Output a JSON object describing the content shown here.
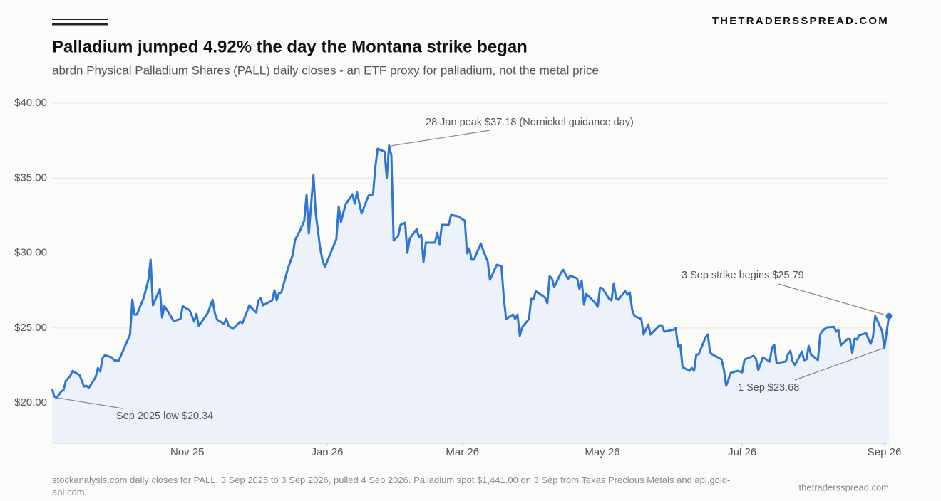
{
  "chart_data": {
    "type": "line",
    "brand": "THETRADERSSPREAD.COM",
    "title": "Palladium jumped 4.92% the day the Montana strike began",
    "subtitle": "abrdn Physical Palladium Shares (PALL) daily closes - an ETF proxy for palladium, not the metal price",
    "source": "stockanalysis.com daily closes for PALL, 3 Sep 2025 to 3 Sep 2026, pulled 4 Sep 2026. Palladium spot $1,441.00 on 3 Sep from Texas Precious Metals and api.gold-api.com.",
    "footer_right": "thetradersspread.com",
    "annotations": [
      "28 Jan peak $37.18 (Nornickel guidance day)",
      "Sep 2025 low $20.34",
      "3 Sep strike begins $25.79",
      "1 Sep $23.68"
    ],
    "x": [
      0,
      1,
      2,
      4,
      5,
      6,
      8,
      9,
      12,
      14,
      15,
      16,
      19,
      20,
      21,
      22,
      23,
      26,
      27,
      29,
      34,
      35,
      36,
      37,
      40,
      42,
      43,
      44,
      47,
      48,
      49,
      51,
      53,
      56,
      57,
      60,
      62,
      63,
      64,
      68,
      70,
      71,
      72,
      75,
      76,
      77,
      79,
      82,
      83,
      85,
      86,
      89,
      90,
      91,
      92,
      96,
      97,
      98,
      99,
      100,
      103,
      105,
      106,
      108,
      110,
      111,
      112,
      114,
      115,
      117,
      118,
      119,
      124,
      125,
      126,
      128,
      130,
      131,
      132,
      133,
      135,
      138,
      140,
      141,
      142,
      145,
      146,
      147,
      148,
      149,
      151,
      152,
      154,
      155,
      156,
      159,
      160,
      161,
      162,
      163,
      167,
      168,
      169,
      170,
      173,
      174,
      177,
      180,
      181,
      182,
      183,
      184,
      187,
      188,
      190,
      191,
      194,
      196,
      197,
      198,
      201,
      202,
      203,
      204,
      205,
      208,
      209,
      210,
      211,
      215,
      216,
      217,
      218,
      219,
      222,
      223,
      225,
      226,
      229,
      230,
      231,
      232,
      233,
      237,
      238,
      239,
      240,
      243,
      244,
      245,
      246,
      247,
      250,
      251,
      252,
      253,
      254,
      257,
      258,
      260,
      261,
      265,
      266,
      267,
      271,
      272,
      273,
      274,
      275,
      278,
      279,
      280,
      281,
      282,
      285,
      286,
      287,
      288,
      292,
      293,
      294,
      296,
      299,
      301,
      302,
      306,
      307,
      308,
      310,
      313,
      314,
      315,
      316,
      320,
      321,
      322,
      323,
      324,
      327,
      328,
      329,
      330,
      331,
      334,
      335,
      336,
      337,
      338,
      341,
      342,
      343,
      344,
      347,
      348,
      349,
      350,
      351,
      352,
      355,
      357,
      358,
      359,
      362,
      363,
      365
    ],
    "series": [
      {
        "name": "PALL daily close",
        "color": "#2f76d2",
        "area_color": "#edf1f9",
        "values": [
          20.95,
          20.43,
          20.34,
          20.76,
          20.86,
          21.47,
          21.81,
          22.14,
          21.85,
          21.09,
          21.14,
          21.0,
          21.71,
          22.33,
          22.09,
          22.99,
          23.18,
          23.04,
          22.85,
          22.8,
          24.56,
          26.89,
          25.89,
          25.89,
          27.03,
          28.22,
          29.55,
          26.51,
          27.6,
          25.7,
          26.46,
          25.99,
          25.46,
          25.6,
          26.46,
          26.18,
          25.42,
          25.94,
          25.13,
          26.03,
          26.89,
          25.99,
          25.56,
          25.27,
          25.6,
          25.13,
          24.94,
          25.42,
          25.32,
          26.08,
          26.51,
          26.03,
          26.84,
          26.98,
          26.51,
          26.84,
          27.51,
          26.84,
          27.32,
          27.36,
          29.03,
          29.88,
          30.88,
          31.45,
          32.16,
          33.87,
          31.31,
          35.2,
          32.64,
          30.26,
          29.5,
          29.07,
          30.93,
          33.11,
          32.07,
          33.25,
          33.68,
          33.92,
          33.3,
          34.06,
          32.64,
          33.82,
          33.92,
          35.72,
          36.96,
          36.77,
          35.01,
          37.18,
          36.53,
          30.83,
          31.16,
          31.88,
          32.02,
          30.02,
          30.97,
          31.59,
          31.07,
          31.21,
          29.41,
          30.69,
          30.69,
          31.35,
          30.59,
          31.88,
          31.88,
          32.54,
          32.45,
          32.16,
          29.98,
          30.31,
          29.55,
          29.55,
          30.64,
          30.17,
          29.45,
          28.22,
          29.22,
          29.12,
          27.08,
          25.6,
          25.89,
          25.6,
          25.89,
          24.47,
          25.04,
          25.6,
          26.94,
          26.94,
          27.46,
          27.03,
          26.65,
          28.46,
          28.31,
          27.74,
          28.69,
          28.88,
          28.27,
          28.5,
          28.31,
          27.6,
          28.17,
          26.56,
          27.27,
          26.65,
          26.41,
          27.7,
          27.65,
          26.94,
          26.84,
          27.98,
          26.98,
          26.89,
          27.46,
          27.22,
          27.36,
          26.22,
          25.8,
          25.6,
          24.56,
          25.23,
          24.56,
          25.18,
          25.18,
          24.75,
          24.89,
          24.99,
          23.75,
          23.85,
          22.38,
          22.14,
          22.33,
          22.14,
          23.23,
          23.23,
          24.37,
          24.56,
          23.37,
          23.23,
          22.9,
          22.23,
          21.14,
          22.0,
          22.14,
          22.04,
          22.9,
          23.14,
          22.95,
          22.19,
          23.04,
          22.76,
          23.71,
          23.85,
          22.66,
          22.76,
          23.28,
          23.47,
          22.76,
          22.52,
          23.42,
          22.85,
          22.9,
          23.8,
          23.23,
          22.85,
          24.56,
          24.8,
          24.94,
          25.04,
          25.08,
          24.75,
          24.85,
          23.85,
          24.27,
          24.27,
          23.33,
          24.28,
          24.23,
          24.51,
          24.66,
          23.94,
          24.37,
          25.8,
          24.8,
          23.68,
          25.79
        ]
      }
    ],
    "xlim": [
      0,
      365
    ],
    "xticks": [
      {
        "value": 59,
        "label": "Nov 25"
      },
      {
        "value": 120,
        "label": "Jan 26"
      },
      {
        "value": 179,
        "label": "Mar 26"
      },
      {
        "value": 240,
        "label": "May 26"
      },
      {
        "value": 301,
        "label": "Jul 26"
      },
      {
        "value": 363,
        "label": "Sep 26"
      }
    ],
    "ylim": [
      17.3,
      40
    ],
    "yticks": [
      {
        "value": 20,
        "label": "$20.00"
      },
      {
        "value": 25,
        "label": "$25.00"
      },
      {
        "value": 30,
        "label": "$30.00"
      },
      {
        "value": 35,
        "label": "$35.00"
      },
      {
        "value": 40,
        "label": "$40.00"
      }
    ],
    "grid": true
  }
}
